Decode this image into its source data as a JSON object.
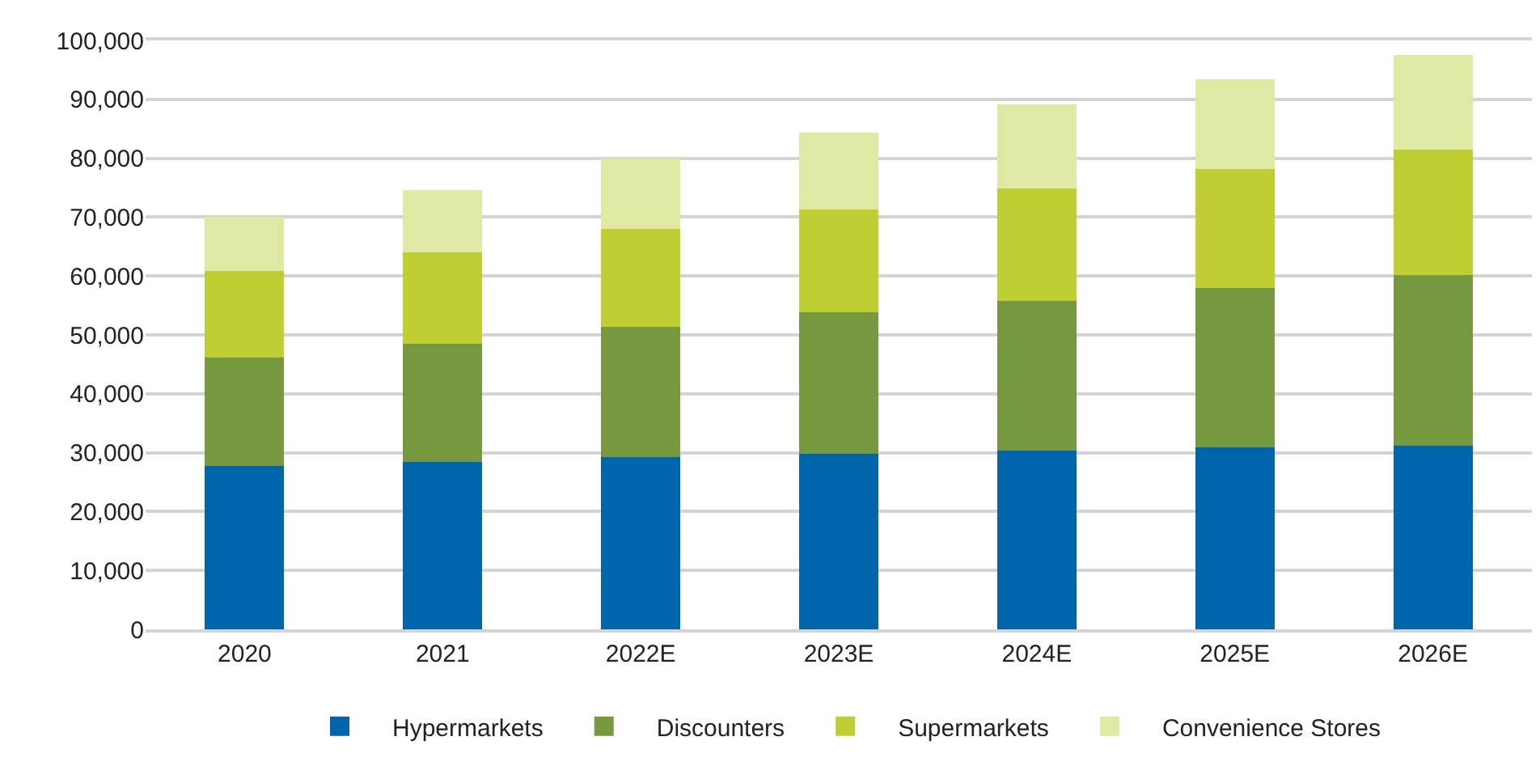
{
  "chart_data": {
    "type": "bar",
    "stacked": true,
    "categories": [
      "2020",
      "2021",
      "2022E",
      "2023E",
      "2024E",
      "2025E",
      "2026E"
    ],
    "series": [
      {
        "name": "Hypermarkets",
        "color": "#0065aa",
        "values": [
          27800,
          28500,
          29300,
          29800,
          30400,
          30900,
          31200
        ]
      },
      {
        "name": "Discounters",
        "color": "#76983f",
        "values": [
          18300,
          20000,
          22100,
          24000,
          25400,
          27100,
          28900
        ]
      },
      {
        "name": "Supermarkets",
        "color": "#bfcf33",
        "values": [
          14800,
          15500,
          16600,
          17500,
          19100,
          20200,
          21300
        ]
      },
      {
        "name": "Convenience Stores",
        "color": "#dfe9a3",
        "values": [
          9100,
          10600,
          11900,
          13000,
          14200,
          15200,
          16100
        ]
      }
    ],
    "ylim": [
      0,
      100000
    ],
    "yticks": [
      0,
      {
        "value": 10000,
        "label": "10,000"
      },
      {
        "value": 20000,
        "label": "20,000"
      },
      {
        "value": 30000,
        "label": "30,000"
      },
      {
        "value": 40000,
        "label": "40,000"
      },
      {
        "value": 50000,
        "label": "50,000"
      },
      {
        "value": 60000,
        "label": "60,000"
      },
      {
        "value": 70000,
        "label": "70,000"
      },
      {
        "value": 80000,
        "label": "80,000"
      },
      {
        "value": 90000,
        "label": "90,000"
      },
      {
        "value": 100000,
        "label": "100,000"
      }
    ],
    "grid": "y",
    "legend": "bottom"
  }
}
